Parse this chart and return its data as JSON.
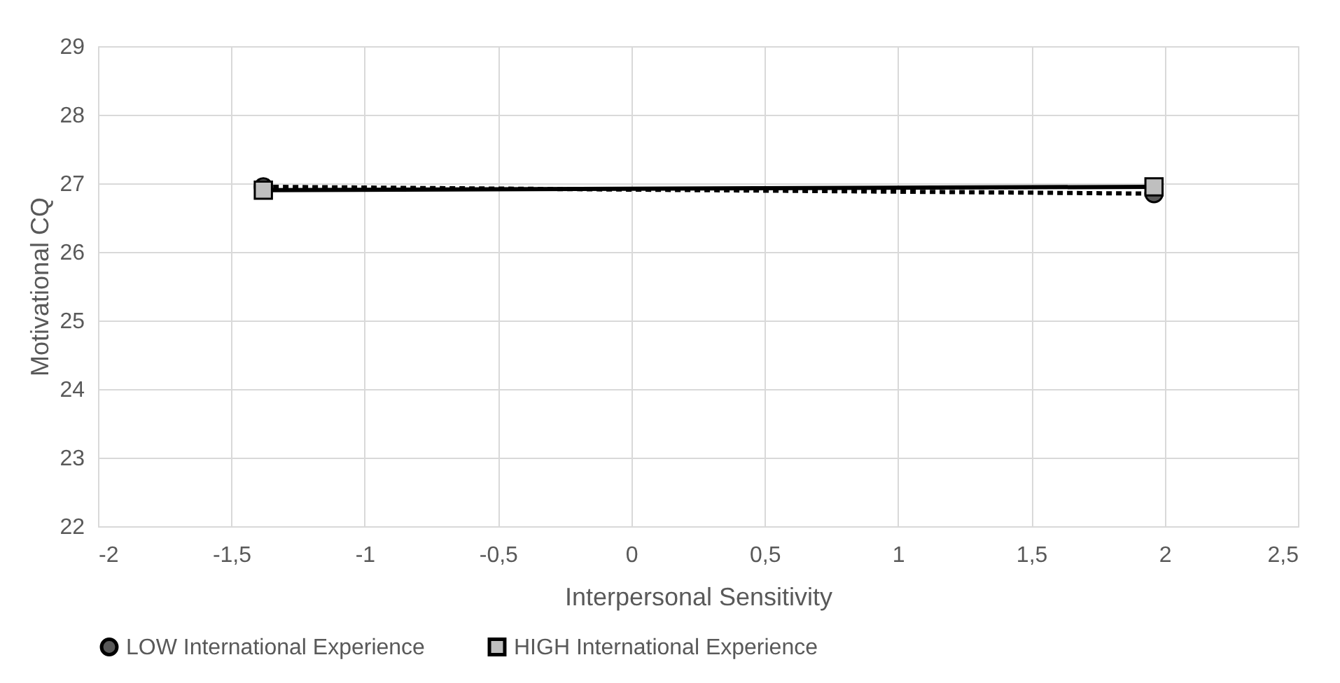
{
  "chart_data": {
    "type": "line",
    "xlabel": "Interpersonal Sensitivity",
    "ylabel": "Motivational CQ",
    "x": [
      -1.38,
      1.96
    ],
    "series": [
      {
        "name": "LOW International Experience",
        "color": "#000000",
        "values": [
          26.95,
          26.85
        ],
        "marker": "circle",
        "line_style": "dashed"
      },
      {
        "name": "HIGH International Experience",
        "color": "#000000",
        "values": [
          26.9,
          26.95
        ],
        "marker": "square",
        "line_style": "solid"
      }
    ],
    "xlim": [
      -2,
      2.5
    ],
    "xticks": [
      -2,
      {
        "value": -1.5,
        "label": "-1,5"
      },
      -1,
      {
        "value": -0.5,
        "label": "-0,5"
      },
      0,
      {
        "value": 0.5,
        "label": "0,5"
      },
      1,
      {
        "value": 1.5,
        "label": "1,5"
      },
      2,
      {
        "value": 2.5,
        "label": "2,5"
      }
    ],
    "ylim": [
      22,
      29
    ],
    "yticks": [
      22,
      23,
      24,
      25,
      26,
      27,
      28,
      29
    ],
    "grid": true,
    "legend": "bottom"
  }
}
